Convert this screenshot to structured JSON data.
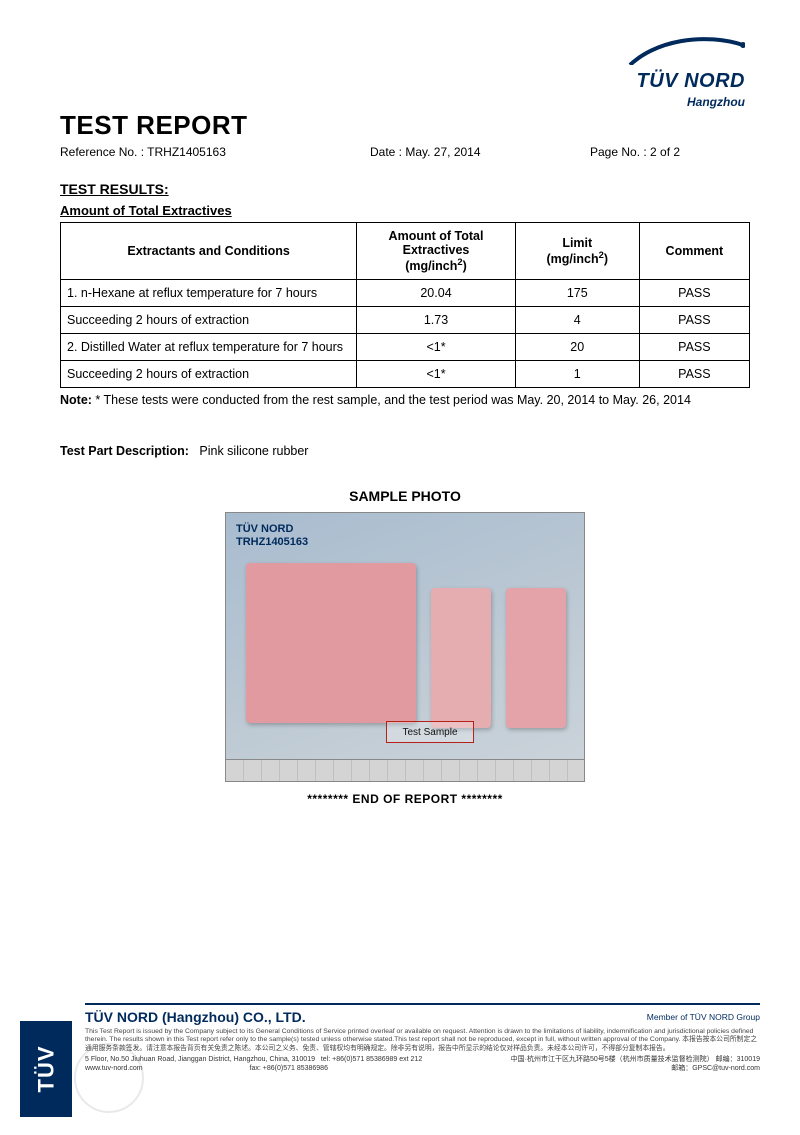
{
  "logo": {
    "brand": "TÜV NORD",
    "sub": "Hangzhou",
    "arc_color": "#002a5c"
  },
  "header": {
    "title": "TEST REPORT",
    "ref_label": "Reference No. : ",
    "ref_value": "TRHZ1405163",
    "date_label": "Date : ",
    "date_value": "May. 27, 2014",
    "page_label": "Page No. : ",
    "page_value": "2 of 2"
  },
  "results": {
    "section_title": "TEST RESULTS:",
    "subtitle": "Amount of Total Extractives",
    "columns": [
      "Extractants and Conditions",
      "Amount of Total Extractives (mg/inch²)",
      "Limit (mg/inch²)",
      "Comment"
    ],
    "rows": [
      [
        "1. n-Hexane at reflux temperature for 7 hours",
        "20.04",
        "175",
        "PASS"
      ],
      [
        "Succeeding 2 hours of extraction",
        "1.73",
        "4",
        "PASS"
      ],
      [
        "2. Distilled Water at reflux temperature for 7 hours",
        "<1*",
        "20",
        "PASS"
      ],
      [
        "Succeeding 2 hours of extraction",
        "<1*",
        "1",
        "PASS"
      ]
    ],
    "note_label": "Note:",
    "note_text": " * These tests were conducted from the rest sample, and the test period was May. 20, 2014 to May. 26, 2014"
  },
  "part": {
    "label": "Test Part Description:",
    "value": "Pink silicone rubber"
  },
  "photo": {
    "title": "SAMPLE PHOTO",
    "overlay_line1": "TÜV NORD",
    "overlay_line2": "TRHZ1405163",
    "test_sample_label": "Test Sample",
    "background_gradient": [
      "#a8bccf",
      "#ccd4db"
    ],
    "slab_color": "#e19a9f"
  },
  "end": "******** END OF REPORT ********",
  "footer": {
    "company": "TÜV NORD (Hangzhou) CO., LTD.",
    "member": "Member of TÜV NORD Group",
    "disclaimer": "This Test Report is issued by the Company subject to its General Conditions of Service printed overleaf or available on request. Attention is drawn to the limitations of liability, indemnification and jurisdictional policies defined therein. The results shown in this Test report refer only to the sample(s) tested unless otherwise stated.This test report shall not be reproduced, except in full, without written approval of the Company. 本报告按本公司所制定之通用服务条款签发。请注意本报告背页有关免责之陈述。本公司之义务、免责、管辖权均有明确规定。除非另有说明，报告中所显示的结论仅对样品负责。未经本公司许可，不得部分复制本报告。",
    "addr_left_1": "5 Floor, No.50 Jiuhuan Road, Jianggan District, Hangzhou, China, 310019",
    "addr_left_2": "www.tuv-nord.com",
    "addr_left_3": "tel: +86(0)571 85386989 ext 212",
    "addr_left_4": "fax: +86(0)571 85386986",
    "addr_right_1": "中国·杭州市江干区九环路50号5楼（杭州市质量技术监督检测院）   邮编：310019",
    "addr_right_2": "邮箱：GPSC@tuv-nord.com",
    "tag": "TÜV"
  },
  "colors": {
    "brand_navy": "#002a5c",
    "border": "#000000",
    "text": "#000000",
    "photo_pink": "#e19a9f",
    "photo_bg": "#b5c4d2",
    "callout_red": "#b52018"
  },
  "typography": {
    "title_pt": 26,
    "body_pt": 12.5,
    "footer_pt": 7
  }
}
